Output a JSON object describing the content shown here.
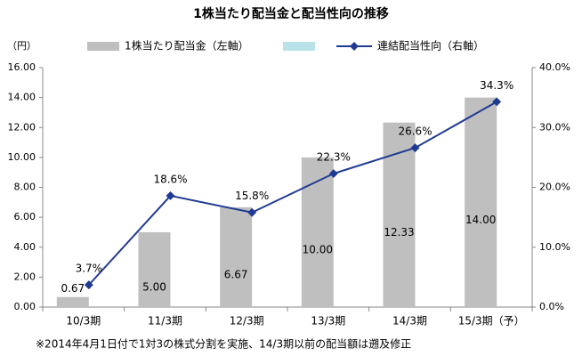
{
  "chart_data": {
    "type": "bar_line",
    "title": "1株当たり配当金と配当性向の推移",
    "y_label": "（円）",
    "footnote": "※2014年4月1日付で1対3の株式分割を実施、14/3期以前の配当額は遡及修正",
    "categories": [
      "10/3期",
      "11/3期",
      "12/3期",
      "13/3期",
      "14/3期",
      "15/3期（予）"
    ],
    "series": [
      {
        "name": "1株当たり配当金（左軸）",
        "color": "#bfbfbf",
        "values": [
          0.67,
          5.0,
          6.67,
          10.0,
          12.33,
          14.0
        ],
        "value_labels": [
          "0.67",
          "5.00",
          "6.67",
          "10.00",
          "12.33",
          "14.00"
        ]
      },
      {
        "name": "連結配当性向（右軸）",
        "color": "#1f3a93",
        "axis": "y2",
        "values": [
          3.7,
          18.6,
          15.8,
          22.3,
          26.6,
          34.3
        ],
        "value_labels": [
          "3.7%",
          "18.6%",
          "15.8%",
          "22.3%",
          "26.6%",
          "34.3%"
        ]
      }
    ],
    "ylim": [
      0,
      16
    ],
    "yticks": [
      {
        "value": 0,
        "label": "0.00"
      },
      {
        "value": 2,
        "label": "2.00"
      },
      {
        "value": 4,
        "label": "4.00"
      },
      {
        "value": 6,
        "label": "6.00"
      },
      {
        "value": 8,
        "label": "8.00"
      },
      {
        "value": 10,
        "label": "10.00"
      },
      {
        "value": 12,
        "label": "12.00"
      },
      {
        "value": 14,
        "label": "14.00"
      },
      {
        "value": 16,
        "label": "16.00"
      }
    ],
    "y2lim": [
      0,
      40
    ],
    "y2ticks": [
      {
        "value": 0,
        "label": "0.0%"
      },
      {
        "value": 10,
        "label": "10.0%"
      },
      {
        "value": 20,
        "label": "20.0%"
      },
      {
        "value": 30,
        "label": "30.0%"
      },
      {
        "value": 40,
        "label": "40.0%"
      }
    ],
    "grid": false
  }
}
